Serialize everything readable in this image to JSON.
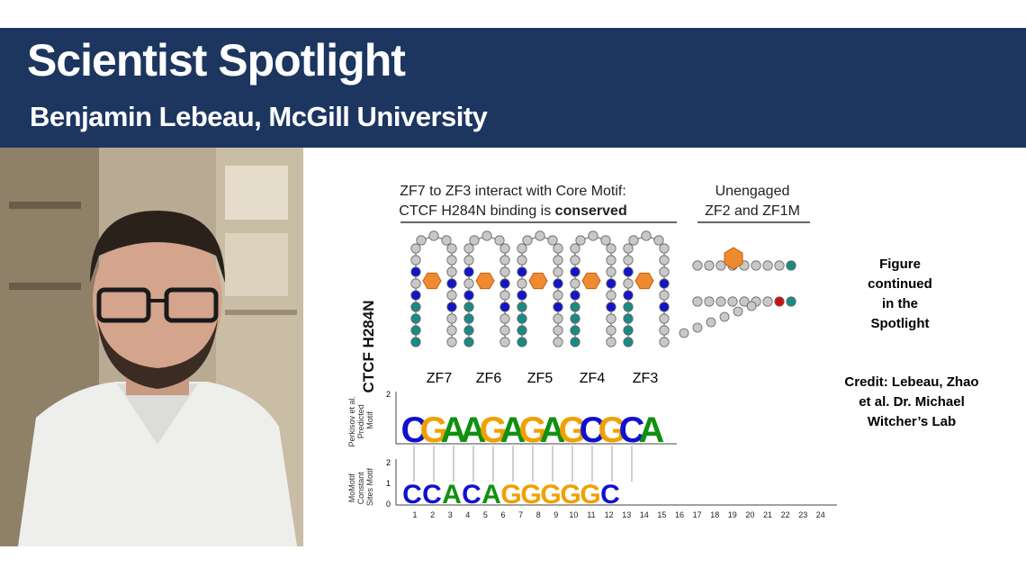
{
  "header": {
    "title": "Scientist Spotlight",
    "subtitle": "Benjamin Lebeau, McGill University",
    "background_color": "#1c3660"
  },
  "figure": {
    "header_left_line1": "ZF7 to ZF3 interact with Core Motif:",
    "header_left_line2_prefix": "CTCF H284N binding is ",
    "header_left_line2_bold": "conserved",
    "header_right_line1": "Unengaged",
    "header_right_line2": "ZF2 and ZF1M",
    "vertical_label": "CTCF H284N",
    "zf_labels": [
      "ZF7",
      "ZF6",
      "ZF5",
      "ZF4",
      "ZF3"
    ],
    "logo1_ylabel": [
      "Perkisov et al.",
      "Predicted",
      "Motif"
    ],
    "logo2_ylabel": [
      "MoMotif",
      "Constant",
      "Sites Motif"
    ],
    "axis_ticks": [
      "1",
      "2",
      "3",
      "4",
      "5",
      "6",
      "7",
      "8",
      "9",
      "10",
      "11",
      "12",
      "13",
      "14",
      "15",
      "16",
      "17",
      "18",
      "19",
      "20",
      "21",
      "22",
      "23",
      "24"
    ],
    "y_ticks": [
      "2",
      "1",
      "0"
    ],
    "logo1_letters": [
      "C",
      "G",
      "A",
      "A",
      "G",
      "A",
      "G",
      "A",
      "G",
      "C",
      "G",
      "C",
      "A"
    ],
    "logo2_letters": [
      "C",
      "C",
      "A",
      "C",
      "A",
      "G",
      "G",
      "G",
      "G",
      "G",
      "C"
    ]
  },
  "sidebar": {
    "note_lines": [
      "Figure",
      "continued",
      "in the",
      "Spotlight"
    ],
    "credit_lines": [
      "Credit: Lebeau, Zhao",
      "et al. Dr. Michael",
      "Witcher’s Lab"
    ]
  }
}
